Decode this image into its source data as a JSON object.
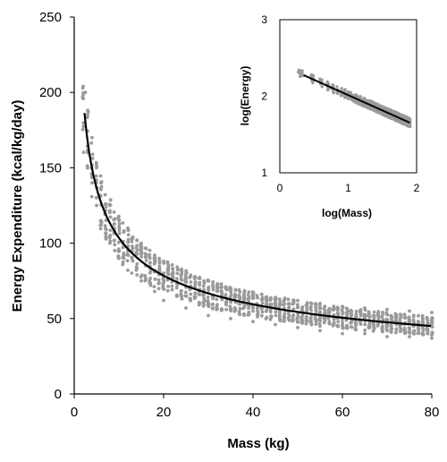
{
  "chart_data": [
    {
      "type": "scatter",
      "title": "",
      "xlabel": "Mass (kg)",
      "ylabel": "Energy Expenditure (kcal/kg/day)",
      "xlim": [
        0,
        80
      ],
      "ylim": [
        0,
        250
      ],
      "xticks": [
        "0",
        "20",
        "40",
        "60",
        "80"
      ],
      "yticks": [
        "0",
        "50",
        "100",
        "150",
        "200",
        "250"
      ],
      "grid": false,
      "legend": "none",
      "colors": {
        "points": "#9a9a9a",
        "fit": "#000000",
        "axis": "#000000"
      },
      "series": [
        {
          "kind": "scatter",
          "description": "individual measurements, approx. integer masses 2-80 kg, ~15 per mass",
          "x": [
            2,
            2.5,
            3,
            3,
            4,
            4,
            5,
            5,
            6,
            6,
            8,
            8,
            10,
            10,
            12,
            12,
            15,
            15,
            18,
            18,
            20,
            20,
            25,
            25,
            30,
            30,
            35,
            35,
            40,
            40,
            45,
            45,
            50,
            50,
            55,
            55,
            60,
            60,
            65,
            65,
            70,
            70,
            75,
            75,
            80,
            80
          ],
          "y": [
            204,
            200,
            185,
            160,
            170,
            140,
            150,
            125,
            140,
            115,
            125,
            100,
            115,
            90,
            110,
            82,
            100,
            75,
            92,
            68,
            88,
            62,
            80,
            57,
            75,
            52,
            70,
            50,
            66,
            48,
            64,
            46,
            62,
            44,
            60,
            42,
            58,
            40,
            57,
            40,
            56,
            38,
            55,
            38,
            54,
            37
          ]
        },
        {
          "kind": "line",
          "description": "power-law fit",
          "equation_form": "y = a * x^b",
          "a": 260,
          "b": -0.4,
          "x_range": [
            2.3,
            80
          ]
        }
      ]
    },
    {
      "type": "scatter",
      "title": "",
      "xlabel": "log(Mass)",
      "ylabel": "log(Energy)",
      "xlim": [
        0,
        2
      ],
      "ylim": [
        1,
        3
      ],
      "xticks": [
        "0",
        "1",
        "2"
      ],
      "yticks": [
        "1",
        "2",
        "3"
      ],
      "grid": false,
      "legend": "none",
      "series": [
        {
          "kind": "scatter",
          "description": "log-log transformed measurements",
          "x": [
            0.35,
            0.5,
            0.75,
            1.0,
            1.25,
            1.5,
            1.75,
            1.9
          ],
          "y": [
            2.27,
            2.21,
            2.11,
            2.01,
            1.92,
            1.82,
            1.72,
            1.67
          ]
        },
        {
          "kind": "line",
          "description": "linear fit",
          "slope": -0.4,
          "intercept": 2.415,
          "x_range": [
            0.35,
            1.9
          ]
        }
      ]
    }
  ]
}
